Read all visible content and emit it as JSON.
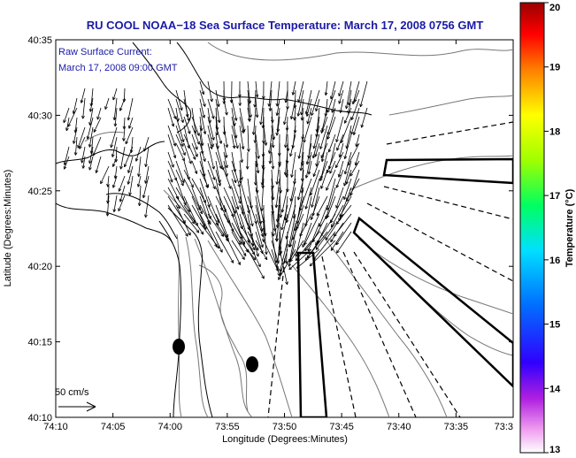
{
  "title": "RU COOL  NOAA−18  Sea Surface Temperature:  March 17, 2008 0756 GMT",
  "inset": {
    "line1": "Raw Surface Current:",
    "line2": "March 17, 2008 09:00 GMT"
  },
  "axes": {
    "xlabel": "Longitude (Degrees:Minutes)",
    "ylabel": "Latitude (Degrees:Minutes)",
    "x_ticks": [
      "74:10",
      "74:05",
      "74:00",
      "73:55",
      "73:50",
      "73:45",
      "73:40",
      "73:35",
      "73:3"
    ],
    "y_ticks": [
      "40:35",
      "40:30",
      "40:25",
      "40:20",
      "40:15",
      "40:10"
    ]
  },
  "scale": {
    "label": "50 cm/s"
  },
  "colorbar": {
    "label": "Temperature (°C)",
    "ticks": [
      "20",
      "19",
      "18",
      "17",
      "16",
      "15",
      "14",
      "13"
    ],
    "min": 13,
    "max": 20
  },
  "colors": {
    "title": "#1a1aa6",
    "coast": "#000000",
    "contour": "#777777"
  }
}
